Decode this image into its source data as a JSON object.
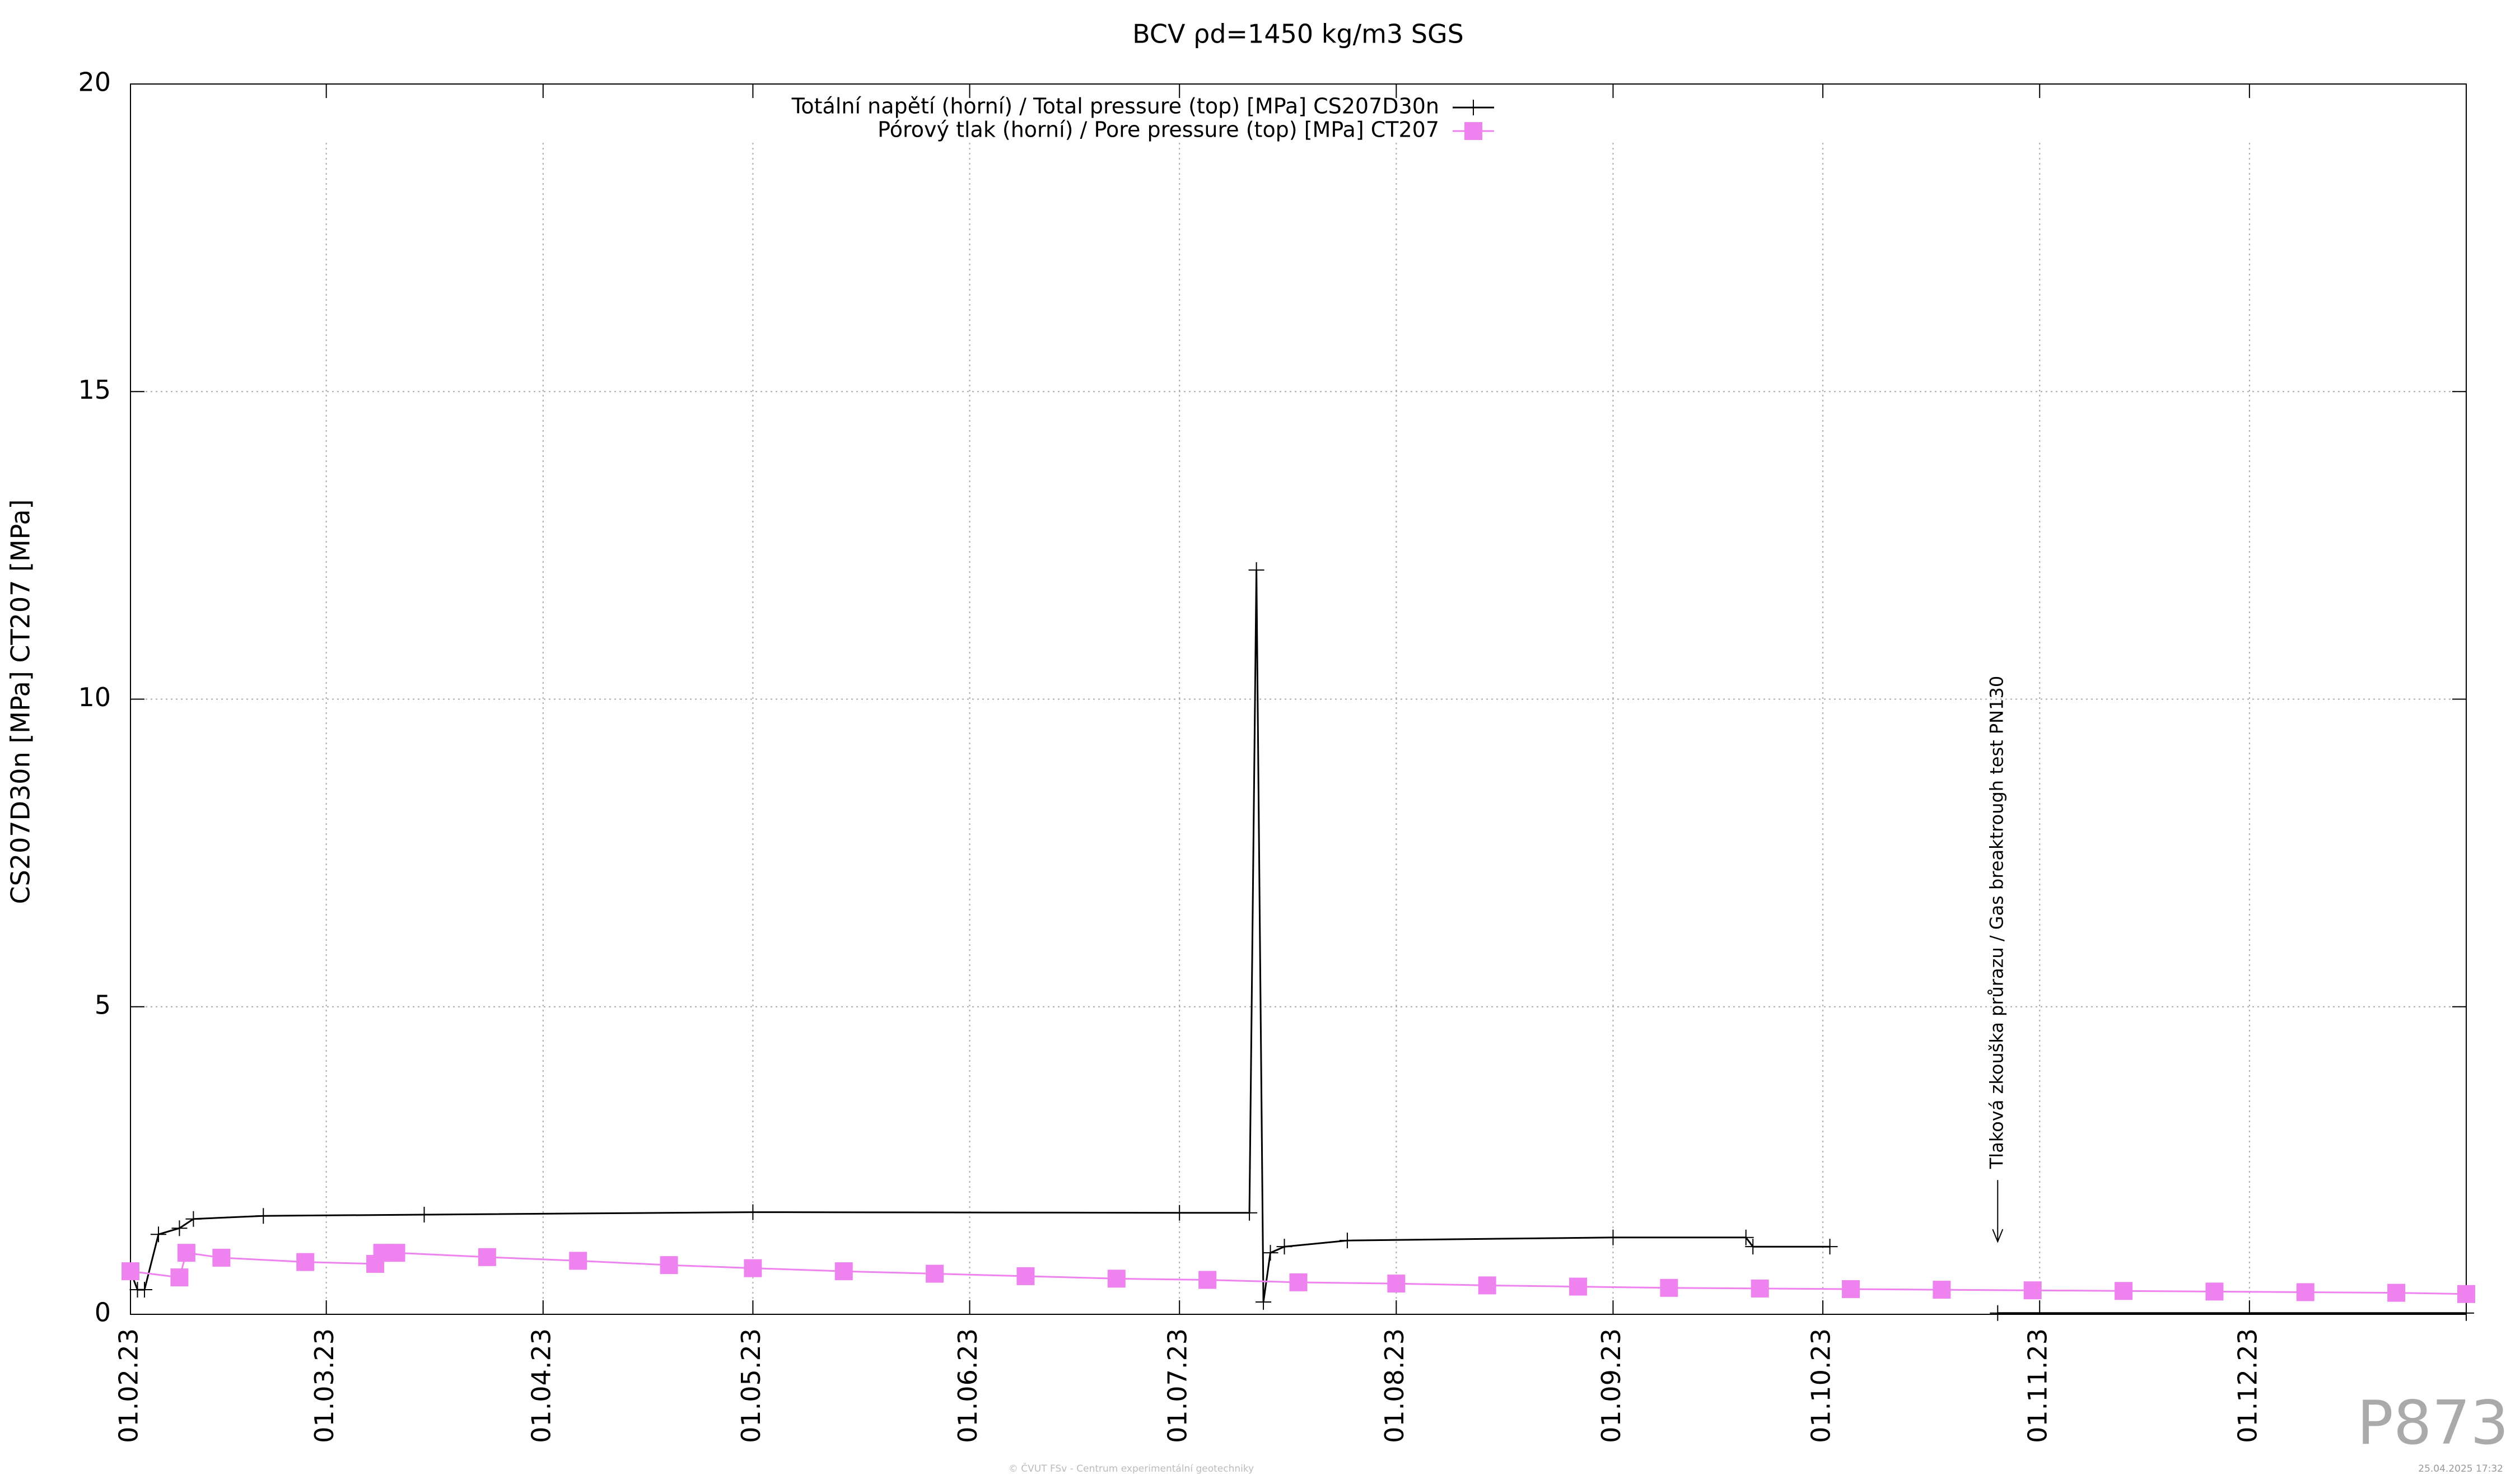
{
  "chart_data": {
    "type": "line",
    "title": "BCV ρd=1450 kg/m3 SGS",
    "ylabel": "CS207D30n [MPa] CT207 [MPa]",
    "xlim": [
      "01.02.23",
      "01.01.24"
    ],
    "xticks": [
      "01.02.23",
      "01.03.23",
      "01.04.23",
      "01.05.23",
      "01.06.23",
      "01.07.23",
      "01.08.23",
      "01.09.23",
      "01.10.23",
      "01.11.23",
      "01.12.23"
    ],
    "ylim": [
      0,
      20
    ],
    "yticks": [
      0,
      5,
      10,
      15,
      20
    ],
    "grid": true,
    "legend": "top",
    "series": [
      {
        "name": "Totální napětí (horní) / Total pressure (top) [MPa] CS207D30n",
        "color": "#000000",
        "marker": "plus",
        "x": [
          "01.02.23",
          "02.02.23",
          "03.02.23",
          "05.02.23",
          "08.02.23",
          "10.02.23",
          "20.02.23",
          "15.03.23",
          "01.05.23",
          "01.07.23",
          "11.07.23",
          "12.07.23",
          "13.07.23",
          "14.07.23",
          "16.07.23",
          "25.07.23",
          "01.09.23",
          "20.09.23",
          "21.09.23",
          "02.10.23",
          "15.10.23",
          "26.10.23",
          "01.01.24"
        ],
        "values": [
          0.7,
          0.4,
          0.4,
          1.3,
          1.4,
          1.55,
          1.6,
          1.62,
          1.66,
          1.65,
          1.65,
          12.1,
          0.2,
          1.0,
          1.1,
          1.2,
          1.25,
          1.25,
          1.1,
          1.1,
          null,
          0.02,
          0.02
        ]
      },
      {
        "name": "Pórový tlak (horní) / Pore pressure (top) [MPa] CT207",
        "color": "#ee82ee",
        "marker": "square",
        "x": [
          "01.02.23",
          "08.02.23",
          "09.02.23",
          "14.02.23",
          "26.02.23",
          "08.03.23",
          "09.03.23",
          "11.03.23",
          "24.03.23",
          "06.04.23",
          "19.04.23",
          "01.05.23",
          "14.05.23",
          "27.05.23",
          "09.06.23",
          "22.06.23",
          "05.07.23",
          "18.07.23",
          "01.08.23",
          "14.08.23",
          "27.08.23",
          "09.09.23",
          "22.09.23",
          "05.10.23",
          "18.10.23",
          "31.10.23",
          "13.11.23",
          "26.11.23",
          "09.12.23",
          "22.12.23",
          "01.01.24"
        ],
        "values": [
          0.7,
          0.6,
          1.0,
          0.92,
          0.85,
          0.82,
          1.0,
          1.0,
          0.93,
          0.87,
          0.8,
          0.75,
          0.7,
          0.66,
          0.62,
          0.58,
          0.56,
          0.52,
          0.5,
          0.47,
          0.45,
          0.43,
          0.42,
          0.41,
          0.4,
          0.39,
          0.38,
          0.37,
          0.36,
          0.35,
          0.33
        ]
      }
    ],
    "annotations": [
      {
        "text": "Tlaková zkouška průrazu / Gas breaktrough test PN130",
        "x": "26.10.23",
        "y": 1.0
      }
    ]
  },
  "footer": {
    "copyright": "© ČVUT FSv - Centrum experimentální geotechniky",
    "timestamp": "25.04.2025 17:32",
    "id": "P873"
  }
}
